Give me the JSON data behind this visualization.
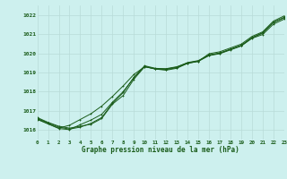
{
  "title": "Graphe pression niveau de la mer (hPa)",
  "bg_color": "#cdf0ee",
  "grid_color": "#b8dbd8",
  "line_color": "#1a5c1a",
  "x_min": 0,
  "x_max": 23,
  "y_min": 1015.5,
  "y_max": 1022.5,
  "yticks": [
    1016,
    1017,
    1018,
    1019,
    1020,
    1021,
    1022
  ],
  "series1": [
    [
      0,
      1016.65
    ],
    [
      1,
      1016.4
    ],
    [
      2,
      1016.2
    ],
    [
      3,
      1016.1
    ],
    [
      4,
      1016.2
    ],
    [
      5,
      1016.3
    ],
    [
      6,
      1016.6
    ],
    [
      7,
      1017.35
    ],
    [
      8,
      1017.8
    ],
    [
      9,
      1018.65
    ],
    [
      10,
      1019.3
    ],
    [
      11,
      1019.2
    ],
    [
      12,
      1019.2
    ],
    [
      13,
      1019.3
    ],
    [
      14,
      1019.5
    ],
    [
      15,
      1019.6
    ],
    [
      16,
      1019.9
    ],
    [
      17,
      1020.0
    ],
    [
      18,
      1020.2
    ],
    [
      19,
      1020.4
    ],
    [
      20,
      1020.8
    ],
    [
      21,
      1021.05
    ],
    [
      22,
      1021.6
    ],
    [
      23,
      1021.85
    ]
  ],
  "series2": [
    [
      0,
      1016.6
    ],
    [
      1,
      1016.38
    ],
    [
      2,
      1016.15
    ],
    [
      3,
      1016.05
    ],
    [
      4,
      1016.15
    ],
    [
      5,
      1016.35
    ],
    [
      6,
      1016.65
    ],
    [
      7,
      1017.4
    ],
    [
      8,
      1017.95
    ],
    [
      9,
      1018.75
    ],
    [
      10,
      1019.35
    ],
    [
      11,
      1019.22
    ],
    [
      12,
      1019.18
    ],
    [
      13,
      1019.28
    ],
    [
      14,
      1019.52
    ],
    [
      15,
      1019.62
    ],
    [
      16,
      1019.92
    ],
    [
      17,
      1020.02
    ],
    [
      18,
      1020.22
    ],
    [
      19,
      1020.42
    ],
    [
      20,
      1020.82
    ],
    [
      21,
      1021.08
    ],
    [
      22,
      1021.62
    ],
    [
      23,
      1021.88
    ]
  ],
  "series3": [
    [
      0,
      1016.55
    ],
    [
      2,
      1016.1
    ],
    [
      3,
      1016.25
    ],
    [
      4,
      1016.55
    ],
    [
      5,
      1016.85
    ],
    [
      6,
      1017.25
    ],
    [
      7,
      1017.75
    ],
    [
      8,
      1018.3
    ],
    [
      9,
      1018.9
    ],
    [
      10,
      1019.3
    ],
    [
      11,
      1019.18
    ],
    [
      12,
      1019.12
    ],
    [
      13,
      1019.22
    ],
    [
      14,
      1019.48
    ],
    [
      15,
      1019.58
    ],
    [
      16,
      1019.98
    ],
    [
      17,
      1020.08
    ],
    [
      18,
      1020.28
    ],
    [
      19,
      1020.48
    ],
    [
      20,
      1020.88
    ],
    [
      21,
      1021.12
    ],
    [
      22,
      1021.68
    ],
    [
      23,
      1021.95
    ]
  ],
  "series4": [
    [
      0,
      1016.58
    ],
    [
      1,
      1016.32
    ],
    [
      2,
      1016.08
    ],
    [
      3,
      1016.02
    ],
    [
      4,
      1016.28
    ],
    [
      5,
      1016.52
    ],
    [
      6,
      1016.82
    ],
    [
      7,
      1017.45
    ],
    [
      8,
      1018.0
    ],
    [
      9,
      1018.72
    ],
    [
      10,
      1019.32
    ],
    [
      11,
      1019.18
    ],
    [
      12,
      1019.15
    ],
    [
      13,
      1019.25
    ],
    [
      14,
      1019.48
    ],
    [
      15,
      1019.58
    ],
    [
      16,
      1019.88
    ],
    [
      17,
      1019.98
    ],
    [
      18,
      1020.18
    ],
    [
      19,
      1020.38
    ],
    [
      20,
      1020.78
    ],
    [
      21,
      1020.98
    ],
    [
      22,
      1021.52
    ],
    [
      23,
      1021.78
    ]
  ]
}
